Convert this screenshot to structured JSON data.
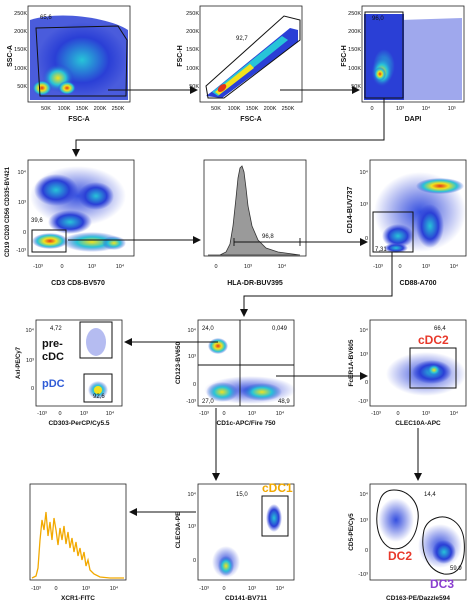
{
  "colors": {
    "density_low": "#2a3fd6",
    "density_mid": "#27c4d8",
    "density_high": "#f2e21d",
    "density_peak": "#e2331b",
    "histogram_fill": "#9a9a9a",
    "xcr1_line": "#f2a900",
    "cdc1_label": "#f2a900",
    "cdc2_label": "#e8382a",
    "pdc_label": "#2f5bd6",
    "dc2_label": "#e8382a",
    "dc3_label": "#8a3fd0",
    "arrow": "#111111"
  },
  "plots": [
    {
      "id": "p1",
      "x_label": "FSC-A",
      "y_label": "SSC-A",
      "x_ticks": [
        "50K",
        "100K",
        "150K",
        "200K",
        "250K"
      ],
      "y_ticks": [
        "250K",
        "200K",
        "150K",
        "100K",
        "50K"
      ],
      "gate_value": "65,6"
    },
    {
      "id": "p2",
      "x_label": "FSC-A",
      "y_label": "FSC-H",
      "x_ticks": [
        "50K",
        "100K",
        "150K",
        "200K",
        "250K"
      ],
      "y_ticks": [
        "250K",
        "200K",
        "150K",
        "100K",
        "50K"
      ],
      "gate_value": "92,7"
    },
    {
      "id": "p3",
      "x_label": "DAPI",
      "y_label": "FSC-H",
      "x_ticks": [
        "0",
        "10³",
        "10⁴",
        "10⁵"
      ],
      "y_ticks": [
        "250K",
        "200K",
        "150K",
        "100K",
        "50K"
      ],
      "gate_value": "96,0"
    },
    {
      "id": "p4",
      "x_label": "CD3 CD8-BV570",
      "y_label": "CD19 CD20 CD56 CD335-BV421",
      "x_ticks": [
        "-10³",
        "0",
        "10³",
        "10⁴"
      ],
      "y_ticks": [
        "10⁴",
        "10³",
        "0",
        "-10³"
      ],
      "gate_value": "39,6"
    },
    {
      "id": "p5",
      "x_label": "HLA-DR-BUV395",
      "y_label": "",
      "x_ticks": [
        "0",
        "10³",
        "10⁴"
      ],
      "y_ticks": [],
      "gate_value": "96,8"
    },
    {
      "id": "p6",
      "x_label": "CD88-A700",
      "y_label": "CD14-BUV737",
      "x_ticks": [
        "-10³",
        "0",
        "10³",
        "10⁴"
      ],
      "y_ticks": [
        "10⁴",
        "10³",
        "0"
      ],
      "gate_value": "7,31"
    },
    {
      "id": "p7",
      "x_label": "CD303-PerCP/Cy5.5",
      "y_label": "Axl-PE/Cy7",
      "x_ticks": [
        "-10³",
        "0",
        "10³",
        "10⁴"
      ],
      "y_ticks": [
        "10⁴",
        "10³",
        "0"
      ],
      "gate_upper": "4,72",
      "gate_lower": "92,6",
      "label_predc_1": "pre-",
      "label_predc_2": "cDC",
      "label_pdc": "pDC"
    },
    {
      "id": "p8",
      "x_label": "CD1c-APC/Fire 750",
      "y_label": "CD123-BV650",
      "x_ticks": [
        "-10³",
        "0",
        "10³",
        "10⁴"
      ],
      "y_ticks": [
        "10⁴",
        "10³",
        "0",
        "-10³"
      ],
      "q_ul": "24,0",
      "q_ur": "0,049",
      "q_ll": "27,0",
      "q_lr": "48,9"
    },
    {
      "id": "p9",
      "x_label": "CLEC10A-APC",
      "y_label": "FcER1A-BV605",
      "x_ticks": [
        "-10³",
        "0",
        "10³",
        "10⁴"
      ],
      "y_ticks": [
        "10⁴",
        "10³",
        "0",
        "-10³"
      ],
      "gate_value": "66,4",
      "label_cdc2": "cDC2"
    },
    {
      "id": "p10",
      "x_label": "XCR1-FITC",
      "y_label": "",
      "x_ticks": [
        "-10³",
        "0",
        "10³",
        "10⁴"
      ],
      "y_ticks": []
    },
    {
      "id": "p11",
      "x_label": "CD141-BV711",
      "y_label": "CLEC9A-PE",
      "x_ticks": [
        "-10³",
        "0",
        "10³",
        "10⁴"
      ],
      "y_ticks": [
        "10⁴",
        "10³",
        "0"
      ],
      "gate_value": "15,0",
      "label_cdc1": "cDC1"
    },
    {
      "id": "p12",
      "x_label": "CD163-PE/Dazzle594",
      "y_label": "CD5-PE/Cy5",
      "x_ticks": [
        "-10³",
        "0",
        "10³",
        "10⁴"
      ],
      "y_ticks": [
        "10⁴",
        "10³",
        "0",
        "-10³"
      ],
      "gate_dc2": "14,4",
      "gate_dc3": "59,9",
      "label_dc2": "DC2",
      "label_dc3": "DC3"
    }
  ]
}
